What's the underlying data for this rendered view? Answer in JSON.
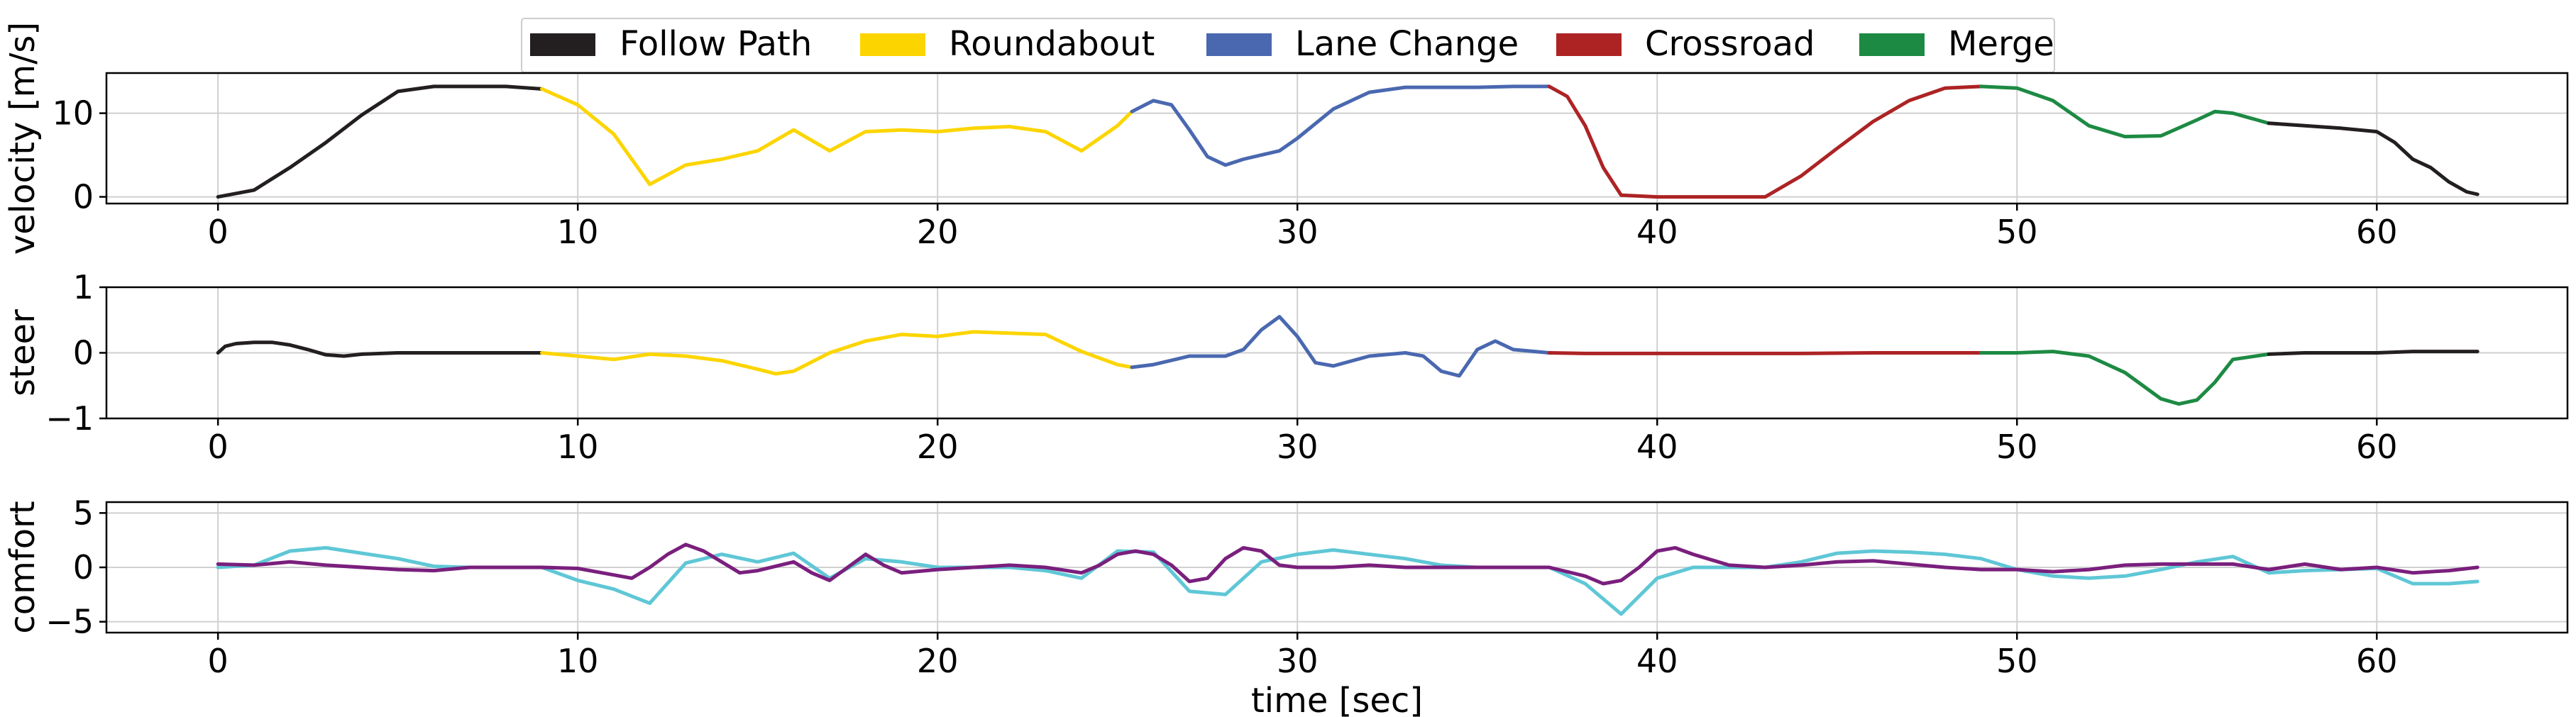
{
  "legend": {
    "entries": [
      {
        "name": "Follow Path",
        "color": "#231f20"
      },
      {
        "name": "Roundabout",
        "color": "#fcd500"
      },
      {
        "name": "Lane Change",
        "color": "#4a68b0"
      },
      {
        "name": "Crossroad",
        "color": "#ad2324"
      },
      {
        "name": "Merge",
        "color": "#1d8a43"
      }
    ],
    "placement": "top-center"
  },
  "chart_data": [
    {
      "type": "line",
      "ylabel": "velocity [m/s]",
      "xlabel": "",
      "xlim": [
        -3.1,
        65.3
      ],
      "ylim": [
        -0.8,
        14.8
      ],
      "xticks": [
        0,
        10,
        20,
        30,
        40,
        50,
        60
      ],
      "yticks": [
        0,
        10
      ],
      "grid": true,
      "series": [
        {
          "name": "Follow Path",
          "color": "#231f20",
          "x": [
            0,
            1,
            2,
            3,
            4,
            5,
            6,
            7,
            8,
            9
          ],
          "y": [
            0,
            0.8,
            3.5,
            6.5,
            9.8,
            12.6,
            13.2,
            13.2,
            13.2,
            12.9
          ]
        },
        {
          "name": "Roundabout",
          "color": "#fcd500",
          "x": [
            9,
            10,
            11,
            12,
            13,
            14,
            15,
            16,
            17,
            18,
            19,
            20,
            21,
            22,
            23,
            24,
            25,
            25.4
          ],
          "y": [
            12.9,
            11,
            7.5,
            1.5,
            3.8,
            4.5,
            5.5,
            8.0,
            5.5,
            7.8,
            8.0,
            7.8,
            8.2,
            8.4,
            7.8,
            5.5,
            8.5,
            10.2
          ]
        },
        {
          "name": "Lane Change",
          "color": "#4a68b0",
          "x": [
            25.4,
            26,
            26.5,
            27,
            27.5,
            28,
            28.5,
            29,
            29.5,
            30,
            31,
            32,
            33,
            34,
            35,
            36,
            37
          ],
          "y": [
            10.2,
            11.5,
            11.0,
            8.0,
            4.8,
            3.8,
            4.5,
            5.0,
            5.5,
            7.0,
            10.5,
            12.5,
            13.1,
            13.1,
            13.1,
            13.2,
            13.2
          ]
        },
        {
          "name": "Crossroad",
          "color": "#ad2324",
          "x": [
            37,
            37.5,
            38,
            38.5,
            39,
            40,
            41,
            42,
            43,
            44,
            45,
            46,
            47,
            48,
            49
          ],
          "y": [
            13.2,
            12.0,
            8.5,
            3.5,
            0.2,
            0,
            0,
            0,
            0,
            2.5,
            5.8,
            9.0,
            11.5,
            13.0,
            13.2
          ]
        },
        {
          "name": "Merge",
          "color": "#1d8a43",
          "x": [
            49,
            50,
            51,
            52,
            53,
            54,
            55,
            55.5,
            56,
            57
          ],
          "y": [
            13.2,
            13.0,
            11.5,
            8.5,
            7.2,
            7.3,
            9.2,
            10.2,
            10.0,
            8.8
          ]
        },
        {
          "name": "Follow Path",
          "color": "#231f20",
          "x": [
            57,
            58,
            59,
            60,
            60.5,
            61,
            61.5,
            62,
            62.5,
            62.8
          ],
          "y": [
            8.8,
            8.5,
            8.2,
            7.8,
            6.5,
            4.5,
            3.5,
            1.8,
            0.6,
            0.3
          ]
        }
      ]
    },
    {
      "type": "line",
      "ylabel": "steer",
      "xlabel": "",
      "xlim": [
        -3.1,
        65.3
      ],
      "ylim": [
        -1,
        1
      ],
      "xticks": [
        0,
        10,
        20,
        30,
        40,
        50,
        60
      ],
      "yticks": [
        -1,
        0,
        1
      ],
      "grid": true,
      "series": [
        {
          "name": "Follow Path",
          "color": "#231f20",
          "x": [
            0,
            0.2,
            0.5,
            1,
            1.5,
            2,
            2.5,
            3,
            3.5,
            4,
            5,
            6,
            7,
            8,
            9
          ],
          "y": [
            0,
            0.1,
            0.14,
            0.16,
            0.16,
            0.12,
            0.05,
            -0.03,
            -0.05,
            -0.02,
            0,
            0,
            0,
            0,
            0
          ]
        },
        {
          "name": "Roundabout",
          "color": "#fcd500",
          "x": [
            9,
            10,
            11,
            12,
            13,
            14,
            15,
            15.5,
            16,
            17,
            18,
            19,
            20,
            21,
            22,
            23,
            24,
            25,
            25.4
          ],
          "y": [
            0,
            -0.05,
            -0.1,
            -0.02,
            -0.05,
            -0.12,
            -0.25,
            -0.32,
            -0.28,
            0,
            0.18,
            0.28,
            0.25,
            0.32,
            0.3,
            0.28,
            0.02,
            -0.18,
            -0.22
          ]
        },
        {
          "name": "Lane Change",
          "color": "#4a68b0",
          "x": [
            25.4,
            26,
            27,
            28,
            28.5,
            29,
            29.5,
            30,
            30.5,
            31,
            32,
            33,
            33.5,
            34,
            34.5,
            35,
            35.5,
            36,
            37
          ],
          "y": [
            -0.22,
            -0.18,
            -0.05,
            -0.05,
            0.05,
            0.35,
            0.55,
            0.25,
            -0.15,
            -0.2,
            -0.05,
            0,
            -0.05,
            -0.28,
            -0.35,
            0.05,
            0.18,
            0.05,
            0
          ]
        },
        {
          "name": "Crossroad",
          "color": "#ad2324",
          "x": [
            37,
            38,
            40,
            42,
            44,
            46,
            48,
            49
          ],
          "y": [
            0,
            -0.01,
            -0.01,
            -0.01,
            -0.01,
            0,
            0,
            0
          ]
        },
        {
          "name": "Merge",
          "color": "#1d8a43",
          "x": [
            49,
            50,
            51,
            52,
            53,
            54,
            54.5,
            55,
            55.5,
            56,
            57
          ],
          "y": [
            0,
            0,
            0.02,
            -0.05,
            -0.3,
            -0.7,
            -0.78,
            -0.72,
            -0.45,
            -0.1,
            -0.02
          ]
        },
        {
          "name": "Follow Path",
          "color": "#231f20",
          "x": [
            57,
            58,
            59,
            60,
            61,
            62,
            62.8
          ],
          "y": [
            -0.02,
            0,
            0,
            0,
            0.02,
            0.02,
            0.02
          ]
        }
      ]
    },
    {
      "type": "line",
      "ylabel": "comfort",
      "xlabel": "time [sec]",
      "xlim": [
        -3.1,
        65.3
      ],
      "ylim": [
        -6,
        6
      ],
      "xticks": [
        0,
        10,
        20,
        30,
        40,
        50,
        60
      ],
      "yticks": [
        -5,
        0,
        5
      ],
      "grid": true,
      "series": [
        {
          "name": "",
          "color": "#5fc7d6",
          "x": [
            0,
            1,
            2,
            3,
            4,
            5,
            6,
            7,
            8,
            9,
            10,
            11,
            12,
            13,
            14,
            15,
            16,
            17,
            18,
            19,
            20,
            21,
            22,
            23,
            24,
            25,
            26,
            27,
            28,
            29,
            30,
            31,
            32,
            33,
            34,
            35,
            36,
            37,
            38,
            39,
            40,
            41,
            42,
            43,
            44,
            45,
            46,
            47,
            48,
            49,
            50,
            51,
            52,
            53,
            54,
            55,
            56,
            57,
            58,
            59,
            60,
            61,
            62,
            62.8
          ],
          "y": [
            0,
            0.2,
            1.5,
            1.8,
            1.3,
            0.8,
            0.1,
            0,
            0,
            0,
            -1.2,
            -2.0,
            -3.3,
            0.4,
            1.2,
            0.5,
            1.3,
            -1.0,
            0.8,
            0.5,
            0,
            0,
            0,
            -0.3,
            -1.0,
            1.5,
            1.4,
            -2.2,
            -2.5,
            0.5,
            1.2,
            1.6,
            1.2,
            0.8,
            0.2,
            0,
            0,
            0,
            -1.5,
            -4.3,
            -1.0,
            0,
            0,
            0,
            0.5,
            1.3,
            1.5,
            1.4,
            1.2,
            0.8,
            -0.2,
            -0.8,
            -1.0,
            -0.8,
            -0.2,
            0.5,
            1.0,
            -0.5,
            -0.3,
            -0.2,
            -0.1,
            -1.5,
            -1.5,
            -1.3
          ]
        },
        {
          "name": "",
          "color": "#7a1f7d",
          "x": [
            0,
            1,
            2,
            3,
            4,
            5,
            6,
            7,
            8,
            9,
            10,
            11,
            11.5,
            12,
            12.5,
            13,
            13.5,
            14,
            14.5,
            15,
            16,
            16.5,
            17,
            17.5,
            18,
            18.5,
            19,
            20,
            21,
            22,
            23,
            24,
            24.5,
            25,
            25.5,
            26,
            26.5,
            27,
            27.5,
            28,
            28.5,
            29,
            29.5,
            30,
            31,
            32,
            33,
            34,
            35,
            36,
            37,
            38,
            38.5,
            39,
            39.5,
            40,
            40.5,
            41,
            42,
            43,
            44,
            45,
            46,
            47,
            48,
            49,
            50,
            51,
            52,
            53,
            54,
            55,
            56,
            57,
            58,
            59,
            60,
            61,
            62,
            62.8
          ],
          "y": [
            0.3,
            0.2,
            0.5,
            0.2,
            0,
            -0.2,
            -0.3,
            0,
            0,
            0,
            -0.1,
            -0.7,
            -1.0,
            0,
            1.2,
            2.1,
            1.5,
            0.5,
            -0.5,
            -0.3,
            0.5,
            -0.5,
            -1.2,
            0,
            1.2,
            0.2,
            -0.5,
            -0.2,
            0,
            0.2,
            0,
            -0.5,
            0.2,
            1.2,
            1.5,
            1.2,
            0.2,
            -1.3,
            -1.0,
            0.8,
            1.8,
            1.5,
            0.2,
            0,
            0,
            0.2,
            0,
            0,
            0,
            0,
            0,
            -0.8,
            -1.5,
            -1.2,
            0,
            1.5,
            1.8,
            1.2,
            0.2,
            0,
            0.2,
            0.5,
            0.6,
            0.3,
            0,
            -0.2,
            -0.2,
            -0.4,
            -0.2,
            0.2,
            0.3,
            0.3,
            0.3,
            -0.2,
            0.3,
            -0.2,
            0,
            -0.5,
            -0.3,
            0
          ]
        }
      ]
    }
  ]
}
